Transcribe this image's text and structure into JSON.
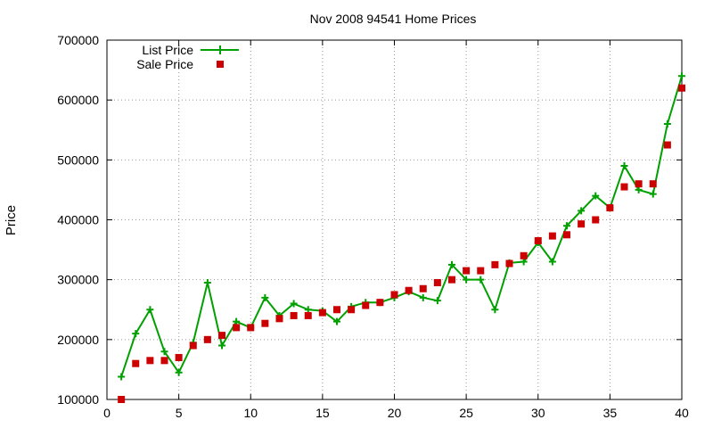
{
  "chart_data": {
    "type": "line",
    "title": "Nov 2008 94541 Home Prices",
    "xlabel": "",
    "ylabel": "Price",
    "xlim": [
      0,
      40
    ],
    "ylim": [
      100000,
      700000
    ],
    "x_ticks": [
      0,
      5,
      10,
      15,
      20,
      25,
      30,
      35,
      40
    ],
    "y_ticks": [
      100000,
      200000,
      300000,
      400000,
      500000,
      600000,
      700000
    ],
    "grid": true,
    "legend_position": "top-left",
    "series": [
      {
        "name": "List Price",
        "mark": "line-plus",
        "color": "#00a000",
        "x": [
          1,
          2,
          3,
          4,
          5,
          6,
          7,
          8,
          9,
          10,
          11,
          12,
          13,
          14,
          15,
          16,
          17,
          18,
          19,
          20,
          21,
          22,
          23,
          24,
          25,
          26,
          27,
          28,
          29,
          30,
          31,
          32,
          33,
          34,
          35,
          36,
          37,
          38,
          39,
          40
        ],
        "values": [
          138000,
          210000,
          250000,
          180000,
          145000,
          195000,
          295000,
          190000,
          230000,
          220000,
          270000,
          240000,
          260000,
          250000,
          248000,
          230000,
          255000,
          262000,
          262000,
          270000,
          280000,
          270000,
          265000,
          325000,
          300000,
          300000,
          250000,
          328000,
          330000,
          362000,
          330000,
          390000,
          415000,
          440000,
          420000,
          490000,
          450000,
          443000,
          560000,
          640000
        ]
      },
      {
        "name": "Sale Price",
        "mark": "square",
        "color": "#cc0000",
        "x": [
          1,
          2,
          3,
          4,
          5,
          6,
          7,
          8,
          9,
          10,
          11,
          12,
          13,
          14,
          15,
          16,
          17,
          18,
          19,
          20,
          21,
          22,
          23,
          24,
          25,
          26,
          27,
          28,
          29,
          30,
          31,
          32,
          33,
          34,
          35,
          36,
          37,
          38,
          39,
          40
        ],
        "values": [
          100000,
          160000,
          165000,
          165000,
          170000,
          190000,
          200000,
          207000,
          220000,
          220000,
          227000,
          235000,
          240000,
          240000,
          245000,
          250000,
          250000,
          257000,
          262000,
          275000,
          282000,
          285000,
          295000,
          300000,
          315000,
          315000,
          325000,
          327000,
          340000,
          365000,
          373000,
          375000,
          393000,
          400000,
          420000,
          455000,
          460000,
          460000,
          525000,
          620000
        ]
      }
    ]
  }
}
